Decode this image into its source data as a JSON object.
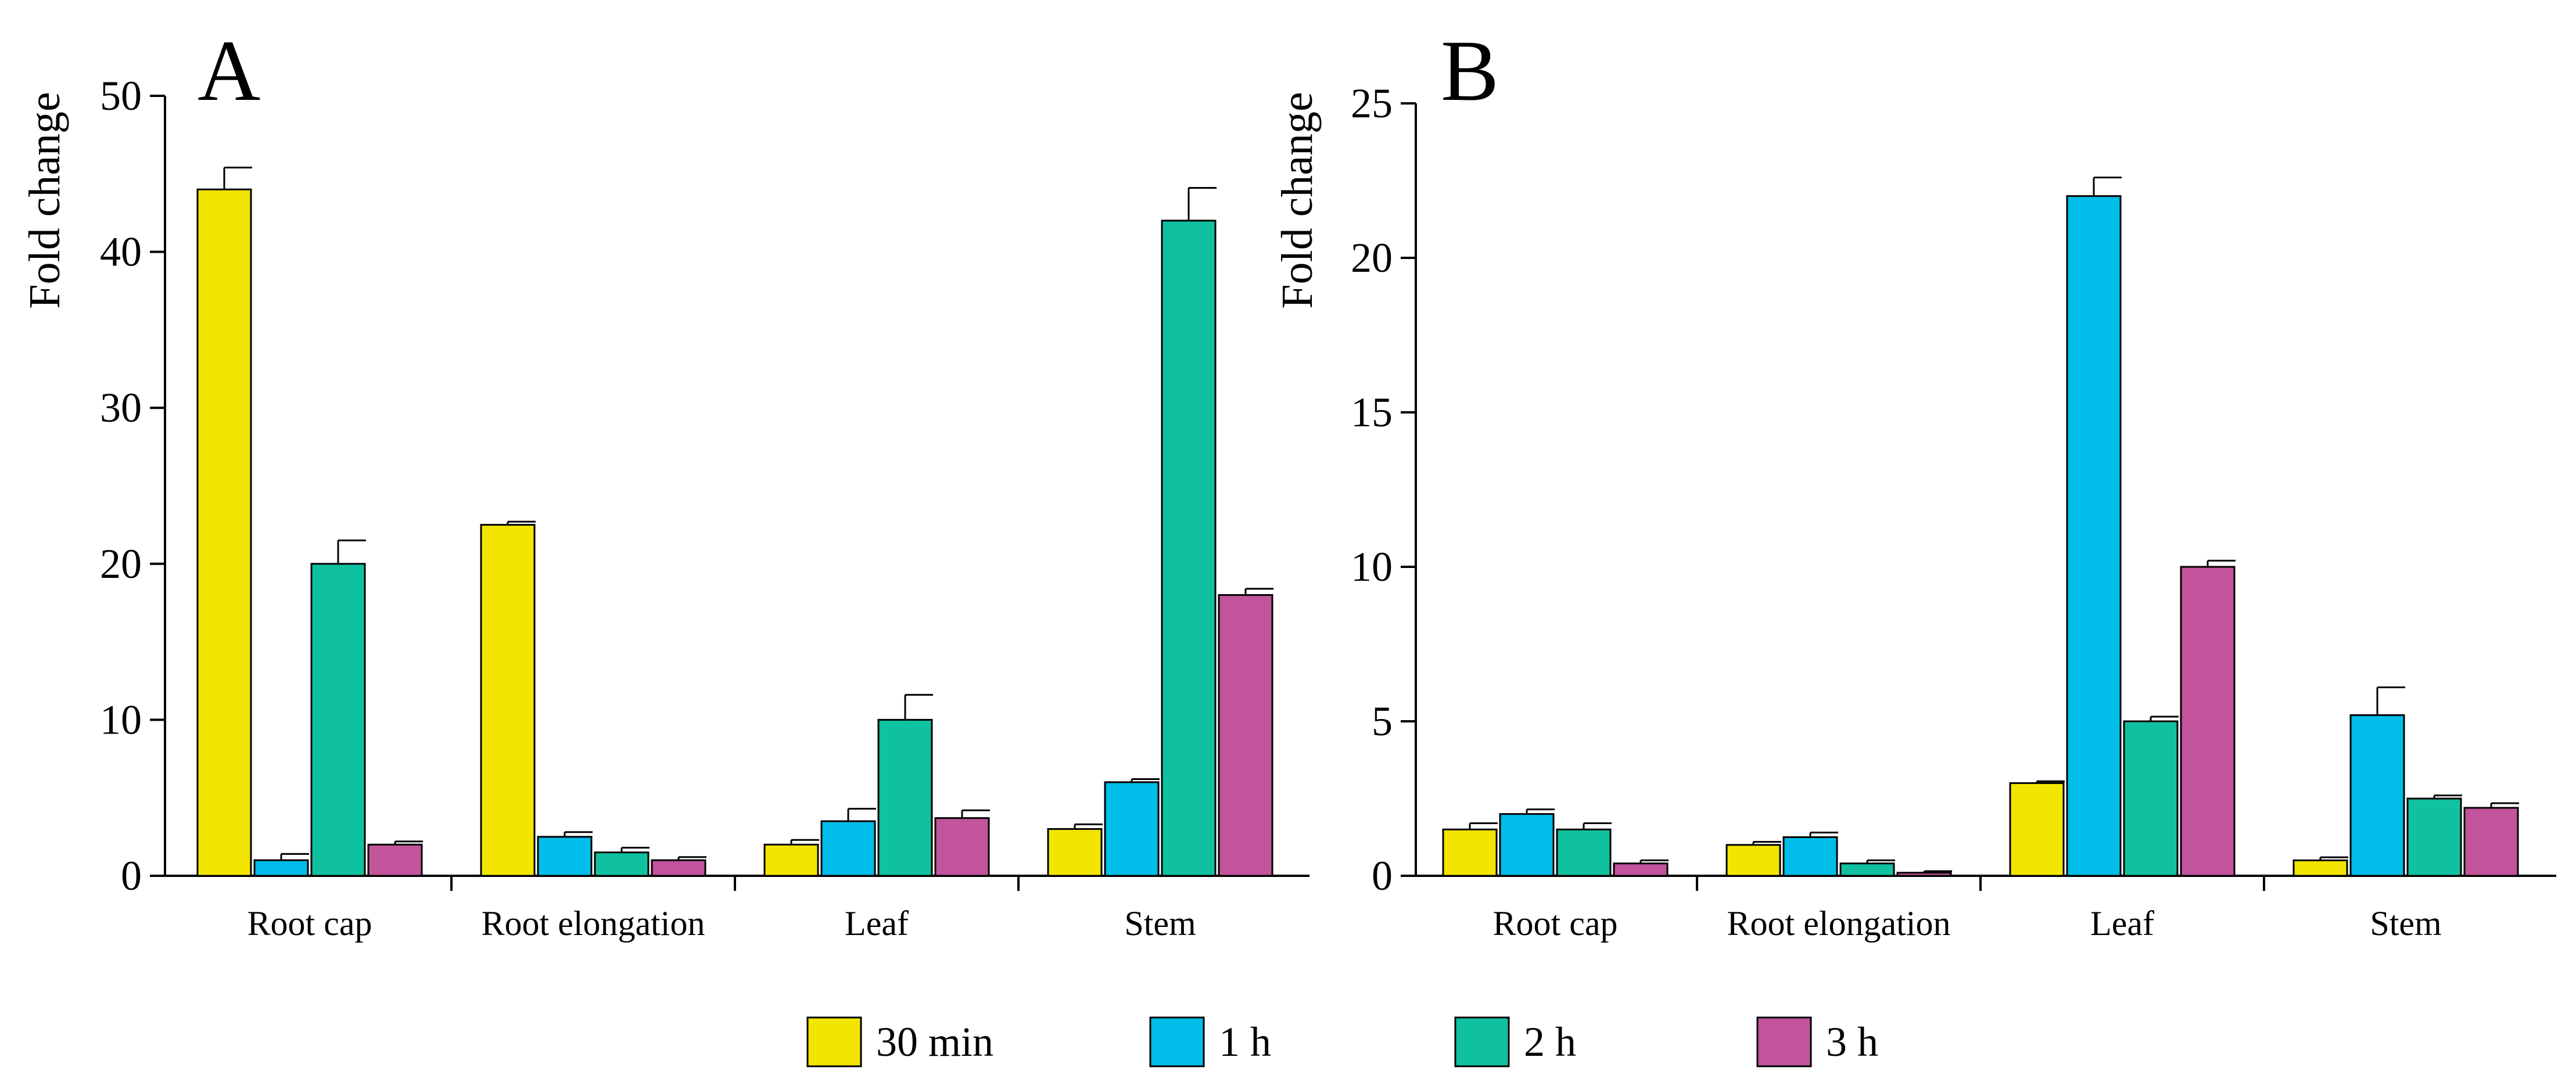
{
  "chart_data": [
    {
      "type": "bar",
      "panel": "A",
      "ylabel": "Fold change",
      "ylim": [
        0,
        50
      ],
      "yticks": [
        "0",
        "10",
        "20",
        "30",
        "40",
        "50"
      ],
      "categories": [
        "Root cap",
        "Root elongation",
        "Leaf",
        "Stem"
      ],
      "series": [
        {
          "name": "30 min",
          "values": [
            44,
            22.5,
            2,
            3
          ],
          "errors": [
            1.4,
            0.2,
            0.3,
            0.3
          ]
        },
        {
          "name": "1 h",
          "values": [
            1,
            2.5,
            3.5,
            6
          ],
          "errors": [
            0.4,
            0.3,
            0.8,
            0.2
          ]
        },
        {
          "name": "2 h",
          "values": [
            20,
            1.5,
            10,
            42
          ],
          "errors": [
            1.5,
            0.3,
            1.6,
            2.1
          ]
        },
        {
          "name": "3 h",
          "values": [
            2,
            1,
            3.7,
            18
          ],
          "errors": [
            0.2,
            0.2,
            0.5,
            0.4
          ]
        }
      ]
    },
    {
      "type": "bar",
      "panel": "B",
      "ylabel": "Fold change",
      "ylim": [
        0,
        25
      ],
      "yticks": [
        "0",
        "5",
        "10",
        "15",
        "20",
        "25"
      ],
      "categories": [
        "Root cap",
        "Root elongation",
        "Leaf",
        "Stem"
      ],
      "series": [
        {
          "name": "30 min",
          "values": [
            1.5,
            1,
            3,
            0.5
          ],
          "errors": [
            0.2,
            0.1,
            0.06,
            0.1
          ]
        },
        {
          "name": "1 h",
          "values": [
            2,
            1.25,
            22,
            5.2
          ],
          "errors": [
            0.15,
            0.15,
            0.6,
            0.9
          ]
        },
        {
          "name": "2 h",
          "values": [
            1.5,
            0.4,
            5,
            2.5
          ],
          "errors": [
            0.2,
            0.1,
            0.15,
            0.1
          ]
        },
        {
          "name": "3 h",
          "values": [
            0.4,
            0.1,
            10,
            2.2
          ],
          "errors": [
            0.1,
            0.05,
            0.2,
            0.15
          ]
        }
      ]
    }
  ],
  "legend": [
    {
      "label": "30 min",
      "color": "#f2e500"
    },
    {
      "label": "1 h",
      "color": "#00bdea"
    },
    {
      "label": "2 h",
      "color": "#10c19f"
    },
    {
      "label": "3 h",
      "color": "#c2549c"
    }
  ]
}
